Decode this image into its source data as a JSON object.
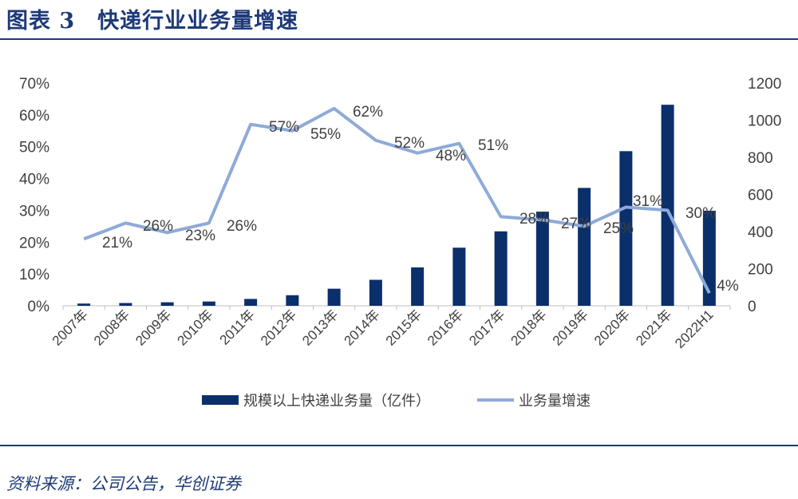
{
  "title": "图表 3　快递行业业务量增速",
  "source": "资料来源：公司公告，华创证券",
  "colors": {
    "bar": "#0b2f6b",
    "line": "#8eaad8",
    "title": "#1d3a78"
  },
  "chart_data": {
    "type": "bar+line",
    "categories": [
      "2007年",
      "2008年",
      "2009年",
      "2010年",
      "2011年",
      "2012年",
      "2013年",
      "2014年",
      "2015年",
      "2016年",
      "2017年",
      "2018年",
      "2019年",
      "2020年",
      "2021年",
      "2022H1"
    ],
    "series": [
      {
        "name": "规模以上快递业务量（亿件）",
        "type": "bar",
        "axis": "right",
        "values": [
          12,
          15,
          19,
          23,
          37,
          57,
          92,
          140,
          207,
          313,
          401,
          507,
          635,
          833,
          1083,
          512
        ]
      },
      {
        "name": "业务量增速",
        "type": "line",
        "axis": "left",
        "values": [
          21,
          26,
          23,
          26,
          57,
          55,
          62,
          52,
          48,
          51,
          28,
          27,
          25,
          31,
          30,
          4
        ],
        "labels": [
          "21%",
          "26%",
          "23%",
          "26%",
          "57%",
          "55%",
          "62%",
          "52%",
          "48%",
          "51%",
          "28%",
          "27%",
          "25%",
          "31%",
          "30%",
          "4%"
        ]
      }
    ],
    "y_left": {
      "ylim": [
        0,
        70
      ],
      "ticks": [
        "0%",
        "10%",
        "20%",
        "30%",
        "40%",
        "50%",
        "60%",
        "70%"
      ]
    },
    "y_right": {
      "ylim": [
        0,
        1200
      ],
      "ticks": [
        "0",
        "200",
        "400",
        "600",
        "800",
        "1000",
        "1200"
      ]
    },
    "grid": false,
    "legend": "bottom"
  }
}
